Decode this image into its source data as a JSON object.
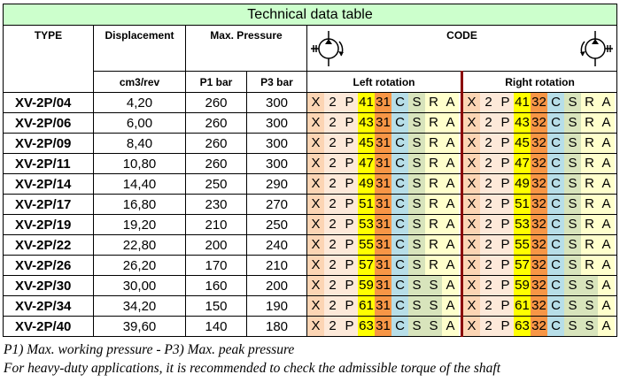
{
  "title": "Technical data table",
  "headers": {
    "type": "TYPE",
    "displacement": "Displacement",
    "max_pressure": "Max. Pressure",
    "code": "CODE",
    "unit_displacement": "cm3/rev",
    "p1": "P1 bar",
    "p3": "P3 bar",
    "left_rotation": "Left rotation",
    "right_rotation": "Right rotation"
  },
  "symbols": {
    "left": "pump-left-rotation-icon",
    "right": "pump-right-rotation-icon"
  },
  "colors": {
    "title_bg": "#ccffcc",
    "x": "#fcd5b4",
    "two_p": "#fde9d9",
    "size": "#ffff00",
    "rotation": "#f79646",
    "c": "#b7dee8",
    "s": "#d8e4bc",
    "r": "#ffffcc",
    "a": "#ffffcc",
    "divider": "#8b0000"
  },
  "rows": [
    {
      "type": "XV-2P/04",
      "disp": "4,20",
      "p1": "260",
      "p3": "300",
      "size": "41",
      "left": [
        "C",
        "S",
        "R",
        "A"
      ],
      "right": [
        "C",
        "S",
        "R",
        "A"
      ]
    },
    {
      "type": "XV-2P/06",
      "disp": "6,00",
      "p1": "260",
      "p3": "300",
      "size": "43",
      "left": [
        "C",
        "S",
        "R",
        "A"
      ],
      "right": [
        "C",
        "S",
        "R",
        "A"
      ]
    },
    {
      "type": "XV-2P/09",
      "disp": "8,40",
      "p1": "260",
      "p3": "300",
      "size": "45",
      "left": [
        "C",
        "S",
        "R",
        "A"
      ],
      "right": [
        "C",
        "S",
        "R",
        "A"
      ]
    },
    {
      "type": "XV-2P/11",
      "disp": "10,80",
      "p1": "260",
      "p3": "300",
      "size": "47",
      "left": [
        "C",
        "S",
        "R",
        "A"
      ],
      "right": [
        "C",
        "S",
        "R",
        "A"
      ]
    },
    {
      "type": "XV-2P/14",
      "disp": "14,40",
      "p1": "250",
      "p3": "290",
      "size": "49",
      "left": [
        "C",
        "S",
        "R",
        "A"
      ],
      "right": [
        "C",
        "S",
        "R",
        "A"
      ]
    },
    {
      "type": "XV-2P/17",
      "disp": "16,80",
      "p1": "230",
      "p3": "270",
      "size": "51",
      "left": [
        "C",
        "S",
        "R",
        "A"
      ],
      "right": [
        "C",
        "S",
        "R",
        "A"
      ]
    },
    {
      "type": "XV-2P/19",
      "disp": "19,20",
      "p1": "210",
      "p3": "250",
      "size": "53",
      "left": [
        "C",
        "S",
        "R",
        "A"
      ],
      "right": [
        "C",
        "S",
        "R",
        "A"
      ]
    },
    {
      "type": "XV-2P/22",
      "disp": "22,80",
      "p1": "200",
      "p3": "240",
      "size": "55",
      "left": [
        "C",
        "S",
        "R",
        "A"
      ],
      "right": [
        "C",
        "S",
        "R",
        "A"
      ]
    },
    {
      "type": "XV-2P/26",
      "disp": "26,20",
      "p1": "170",
      "p3": "210",
      "size": "57",
      "left": [
        "C",
        "S",
        "R",
        "A"
      ],
      "right": [
        "C",
        "S",
        "R",
        "A"
      ]
    },
    {
      "type": "XV-2P/30",
      "disp": "30,00",
      "p1": "160",
      "p3": "200",
      "size": "59",
      "left": [
        "C",
        "S",
        "S",
        "A"
      ],
      "right": [
        "C",
        "S",
        "S",
        "A"
      ]
    },
    {
      "type": "XV-2P/34",
      "disp": "34,20",
      "p1": "150",
      "p3": "190",
      "size": "61",
      "left": [
        "C",
        "S",
        "S",
        "A"
      ],
      "right": [
        "C",
        "S",
        "S",
        "A"
      ]
    },
    {
      "type": "XV-2P/40",
      "disp": "39,60",
      "p1": "140",
      "p3": "180",
      "size": "63",
      "left": [
        "C",
        "S",
        "S",
        "A"
      ],
      "right": [
        "C",
        "S",
        "S",
        "A"
      ]
    }
  ],
  "code_prefix": [
    "X",
    "2",
    "P"
  ],
  "rotation_codes": {
    "left": "31",
    "right": "32"
  },
  "footnotes": [
    "P1) Max. working pressure - P3) Max. peak pressure",
    "For heavy-duty applications, it is recommended to check the admissible torque of the shaft"
  ]
}
